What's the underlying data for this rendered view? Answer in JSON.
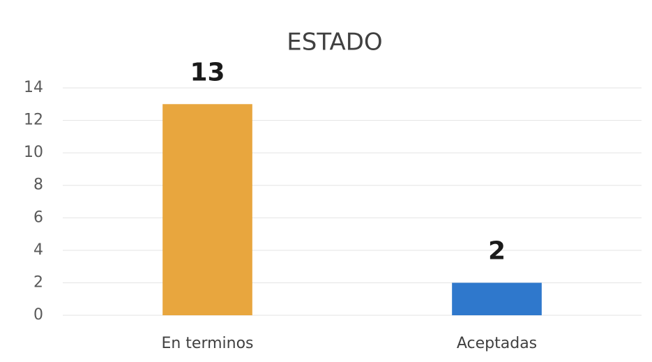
{
  "chart_data": {
    "type": "bar",
    "title": "ESTADO",
    "categories": [
      "En terminos",
      "Aceptadas"
    ],
    "values": [
      13,
      2
    ],
    "colors": [
      "#e8a63e",
      "#2f78cc"
    ],
    "ylim": [
      0,
      14
    ],
    "yticks": [
      0,
      2,
      4,
      6,
      8,
      10,
      12,
      14
    ],
    "grid": true,
    "data_labels": true
  }
}
